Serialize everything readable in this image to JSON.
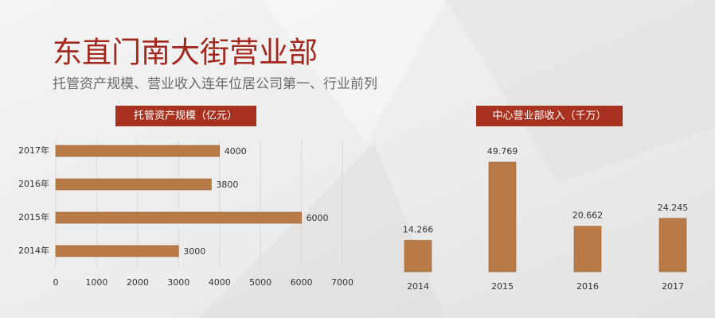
{
  "title": "东直门南大街营业部",
  "subtitle": "托管资产规模、营业收入连年位居公司第一、行业前列",
  "chart_data": [
    {
      "type": "hbar",
      "title": "托管资产规模（亿元）",
      "categories": [
        "2017年",
        "2016年",
        "2015年",
        "2014年"
      ],
      "values": [
        4000,
        3800,
        6000,
        3000
      ],
      "color": "#b87b47",
      "xlim": [
        0,
        7000
      ],
      "xticks": [
        0,
        1000,
        2000,
        3000,
        4000,
        5000,
        6000,
        7000
      ],
      "grid": true
    },
    {
      "type": "bar",
      "title": "中心营业部收入（千万）",
      "categories": [
        "2014",
        "2015",
        "2016",
        "2017"
      ],
      "values": [
        14.266,
        49.769,
        20.662,
        24.245
      ],
      "color": "#b87b47"
    }
  ]
}
